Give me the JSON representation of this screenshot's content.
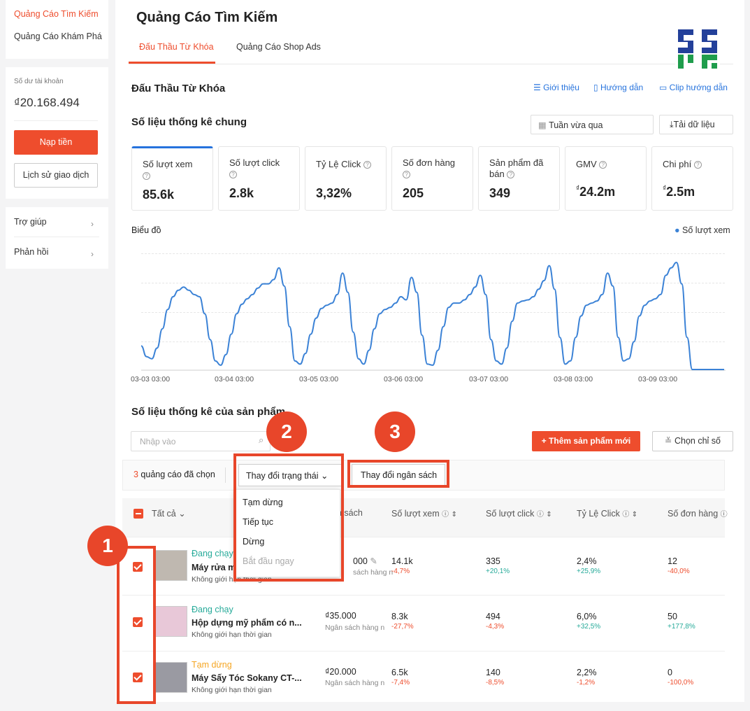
{
  "sidebar": {
    "nav": [
      "Quảng Cáo Tìm Kiếm",
      "Quảng Cáo Khám Phá"
    ],
    "balance_label": "Số dư tài khoản",
    "balance_value": "₫20.168.494",
    "topup_label": "Nạp tiền",
    "history_label": "Lịch sử giao dịch",
    "help_label": "Trợ giúp",
    "feedback_label": "Phản hồi"
  },
  "header": {
    "title": "Quảng Cáo Tìm Kiếm",
    "tabs": [
      "Đấu Thầu Từ Khóa",
      "Quảng Cáo Shop Ads"
    ]
  },
  "section": {
    "title": "Đấu Thầu Từ Khóa",
    "links": [
      "Giới thiệu",
      "Hướng dẫn",
      "Clip hướng dẫn"
    ]
  },
  "overview": {
    "title": "Số liệu thống kê chung",
    "date_range": "Tuần vừa qua",
    "download_label": "Tải dữ liệu",
    "stats": [
      {
        "label": "Số lượt xem",
        "value": "85.6k"
      },
      {
        "label": "Số lượt click",
        "value": "2.8k"
      },
      {
        "label": "Tỷ Lệ Click",
        "value": "3,32%"
      },
      {
        "label": "Số đơn hàng",
        "value": "205"
      },
      {
        "label": "Sản phẩm đã bán",
        "value": "349"
      },
      {
        "label": "GMV",
        "value": "24.2m",
        "currency": "₫"
      },
      {
        "label": "Chi phí",
        "value": "2.5m",
        "currency": "₫"
      }
    ]
  },
  "chart_label": "Biểu đồ",
  "chart_data": {
    "type": "line",
    "legend": "Số lượt xem",
    "legend_color": "#3b82d6",
    "x_ticks": [
      "03-03 03:00",
      "03-04 03:00",
      "03-05 03:00",
      "03-06 03:00",
      "03-07 03:00",
      "03-08 03:00",
      "03-09 03:00"
    ],
    "values": [
      0.22,
      0.12,
      0.1,
      0.2,
      0.38,
      0.56,
      0.68,
      0.74,
      0.77,
      0.74,
      0.7,
      0.68,
      0.52,
      0.28,
      0.08,
      0.04,
      0.14,
      0.33,
      0.52,
      0.61,
      0.66,
      0.7,
      0.76,
      0.8,
      0.8,
      0.84,
      0.95,
      0.78,
      0.4,
      0.08,
      0.05,
      0.15,
      0.33,
      0.48,
      0.57,
      0.6,
      0.62,
      0.7,
      0.9,
      0.72,
      0.35,
      0.1,
      0.05,
      0.18,
      0.38,
      0.52,
      0.56,
      0.58,
      0.62,
      0.68,
      0.65,
      0.86,
      0.72,
      0.32,
      0.05,
      0.04,
      0.18,
      0.4,
      0.58,
      0.62,
      0.62,
      0.65,
      0.7,
      0.77,
      0.88,
      0.7,
      0.28,
      0.08,
      0.05,
      0.2,
      0.45,
      0.62,
      0.64,
      0.65,
      0.68,
      0.75,
      0.83,
      0.97,
      0.75,
      0.3,
      0.05,
      0.08,
      0.3,
      0.5,
      0.6,
      0.62,
      0.64,
      0.7,
      0.9,
      0.78,
      0.3,
      0.08,
      0.1,
      0.26,
      0.5,
      0.6,
      0.64,
      0.66,
      0.7,
      0.88,
      0.95,
      1.0,
      0.8,
      0.3,
      0.0,
      0.0,
      0.0,
      0.0,
      0.0,
      0.0,
      0.0
    ],
    "grid": true
  },
  "products": {
    "title": "Số liệu thống kê của sản phẩm",
    "search_placeholder": "Nhập vào",
    "add_label": "+ Thêm sản phẩm mới",
    "choose_metrics_label": "Chọn chỉ số",
    "selected_count": "3",
    "selected_text": " quảng cáo đã chọn",
    "change_status_label": "Thay đổi trạng thái",
    "change_budget_label": "Thay đổi ngân sách",
    "status_menu": [
      "Tạm dừng",
      "Tiếp tục",
      "Dừng",
      "Bắt đầu ngay"
    ],
    "columns": [
      "Tất cả",
      "Ngân sách",
      "Số lượt xem",
      "Số lượt click",
      "Tỷ Lệ Click",
      "Số đơn hàng"
    ],
    "budget_col_visible": "n sách",
    "rows": [
      {
        "status": "Đang chạy",
        "name": "Máy rửa m",
        "time": "Không giới hạn thời gian",
        "budget": "000",
        "budget_note": "sách hàng n",
        "views": "14.1k",
        "views_chg": "-4,7%",
        "clicks": "335",
        "clicks_chg": "+20,1%",
        "ctr": "2,4%",
        "ctr_chg": "+25,9%",
        "orders": "12",
        "orders_chg": "-40,0%"
      },
      {
        "status": "Đang chạy",
        "name": "Hộp dựng mỹ phẩm có n...",
        "time": "Không giới hạn thời gian",
        "budget": "₫35.000",
        "budget_note": "Ngân sách hàng n",
        "views": "8.3k",
        "views_chg": "-27,7%",
        "clicks": "494",
        "clicks_chg": "-4,3%",
        "ctr": "6,0%",
        "ctr_chg": "+32,5%",
        "orders": "50",
        "orders_chg": "+177,8%"
      },
      {
        "status": "Tạm dừng",
        "name": "Máy Sấy Tóc Sokany CT-...",
        "time": "Không giới hạn thời gian",
        "budget": "₫20.000",
        "budget_note": "Ngân sách hàng n",
        "views": "6.5k",
        "views_chg": "-7,4%",
        "clicks": "140",
        "clicks_chg": "-8,5%",
        "ctr": "2,2%",
        "ctr_chg": "-1,2%",
        "orders": "0",
        "orders_chg": "-100,0%"
      }
    ]
  },
  "annotations": [
    "1",
    "2",
    "3"
  ]
}
